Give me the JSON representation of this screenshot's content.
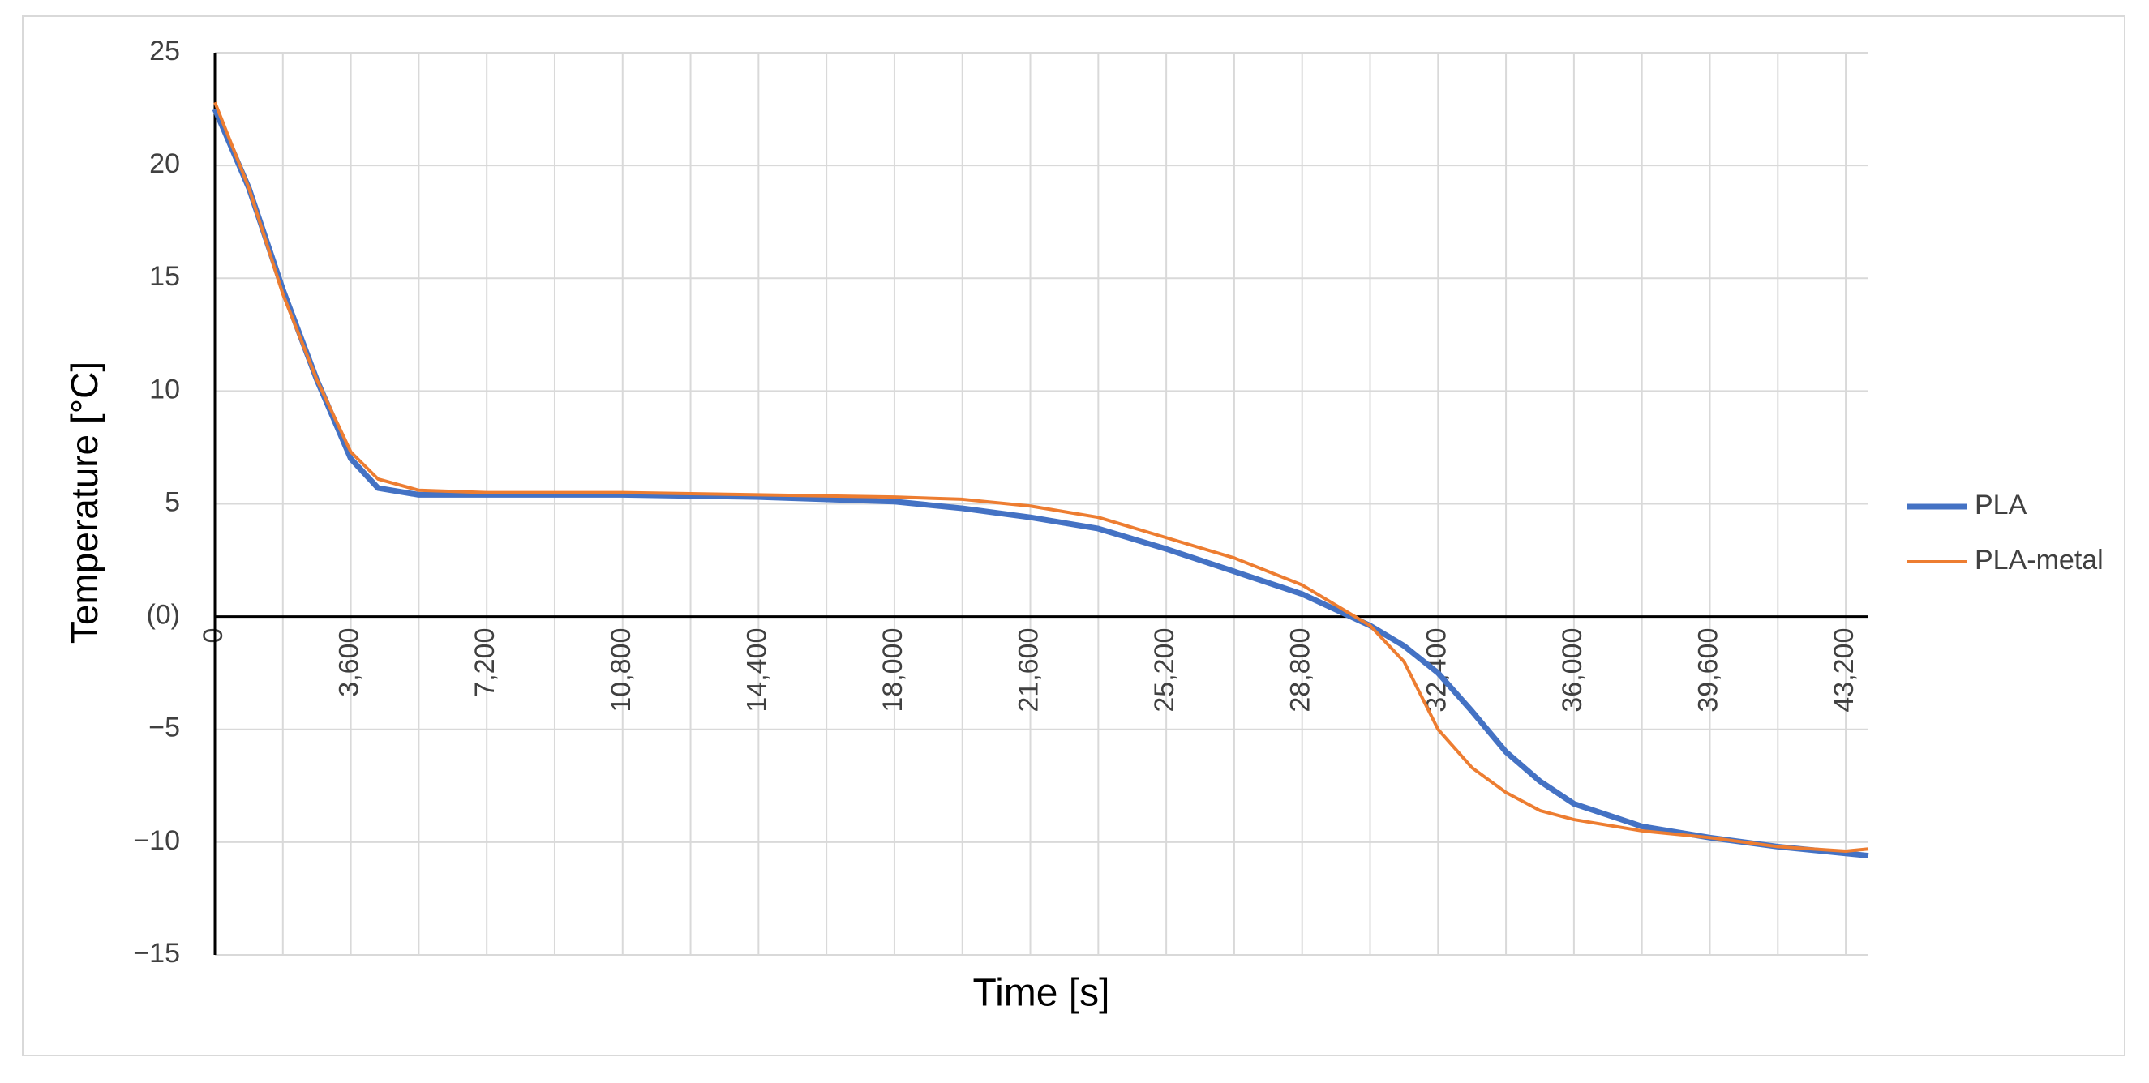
{
  "chart_data": {
    "type": "line",
    "x_label": "Time [s]",
    "y_label": "Temperature [°C]",
    "x": [
      0,
      900,
      1800,
      2700,
      3600,
      4320,
      5400,
      7200,
      10800,
      14400,
      18000,
      19800,
      21600,
      23400,
      25200,
      27000,
      28800,
      30600,
      31500,
      32400,
      33300,
      34200,
      35100,
      36000,
      37800,
      39600,
      41400,
      43200,
      43800
    ],
    "series": [
      {
        "name": "PLA",
        "color": "#4472c4",
        "values": [
          22.5,
          19,
          14.5,
          10.5,
          7,
          5.7,
          5.4,
          5.4,
          5.4,
          5.3,
          5.1,
          4.8,
          4.4,
          3.9,
          3.0,
          2.0,
          1.0,
          -0.4,
          -1.3,
          -2.5,
          -4.2,
          -6,
          -7.3,
          -8.3,
          -9.3,
          -9.8,
          -10.2,
          -10.5,
          -10.6
        ]
      },
      {
        "name": "PLA-metal",
        "color": "#ed7d31",
        "values": [
          22.8,
          19,
          14.3,
          10.5,
          7.3,
          6.1,
          5.6,
          5.5,
          5.5,
          5.4,
          5.3,
          5.2,
          4.9,
          4.4,
          3.5,
          2.6,
          1.4,
          -0.4,
          -2,
          -5,
          -6.7,
          -7.8,
          -8.6,
          -9,
          -9.5,
          -9.8,
          -10.2,
          -10.4,
          -10.3
        ]
      }
    ],
    "xlim": [
      0,
      43800
    ],
    "ylim": [
      -15,
      25
    ],
    "xticks": [
      0,
      {
        "value": 3600,
        "label": "3,600"
      },
      {
        "value": 7200,
        "label": "7,200"
      },
      {
        "value": 10800,
        "label": "10,800"
      },
      {
        "value": 14400,
        "label": "14,400"
      },
      {
        "value": 18000,
        "label": "18,000"
      },
      {
        "value": 21600,
        "label": "21,600"
      },
      {
        "value": 25200,
        "label": "25,200"
      },
      {
        "value": 28800,
        "label": "28,800"
      },
      {
        "value": 32400,
        "label": "32,400"
      },
      {
        "value": 36000,
        "label": "36,000"
      },
      {
        "value": 39600,
        "label": "39,600"
      },
      {
        "value": 43200,
        "label": "43,200"
      }
    ],
    "x_minor_grid": [
      1800,
      5400,
      9000,
      12600,
      16200,
      19800,
      23400,
      27000,
      30600,
      34200,
      37800,
      41400
    ],
    "yticks": [
      {
        "value": -15,
        "label": "−15"
      },
      {
        "value": -10,
        "label": "−10"
      },
      {
        "value": -5,
        "label": "−5"
      },
      {
        "value": 0,
        "label": "(0)"
      },
      5,
      10,
      15,
      20,
      25
    ],
    "grid": true,
    "legend": "right"
  }
}
